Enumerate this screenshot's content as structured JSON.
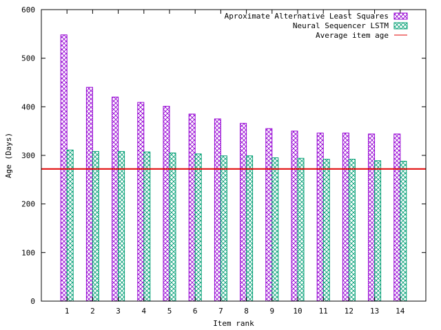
{
  "chart_data": {
    "type": "bar",
    "title": "",
    "xlabel": "Item rank",
    "ylabel": "Age (Days)",
    "ylim": [
      0,
      600
    ],
    "yticks": [
      0,
      100,
      200,
      300,
      400,
      500,
      600
    ],
    "categories": [
      "1",
      "2",
      "3",
      "4",
      "5",
      "6",
      "7",
      "8",
      "9",
      "10",
      "11",
      "12",
      "13",
      "14"
    ],
    "series": [
      {
        "name": "Aproximate Alternative Least Squares",
        "color": "#9400d3",
        "pattern": "crosshatch",
        "values": [
          548,
          440,
          420,
          409,
          401,
          385,
          375,
          366,
          355,
          350,
          346,
          346,
          344,
          344
        ]
      },
      {
        "name": "Neural Sequencer LSTM",
        "color": "#009e73",
        "pattern": "crosshatch",
        "values": [
          311,
          308,
          308,
          307,
          305,
          303,
          299,
          299,
          295,
          294,
          292,
          292,
          289,
          288
        ]
      }
    ],
    "reference_line": {
      "name": "Average item age",
      "value": 272,
      "color": "#e00000"
    },
    "legend_position": "top-right",
    "grid": false
  }
}
